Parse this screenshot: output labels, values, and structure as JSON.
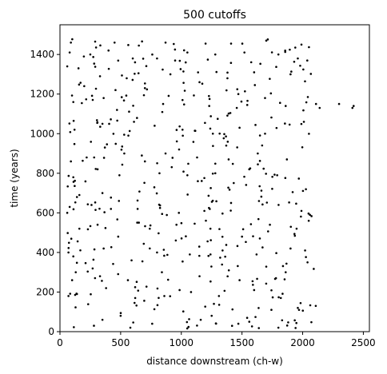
{
  "chart_data": {
    "type": "scatter",
    "title": "500 cutoffs",
    "xlabel": "distance downstream (ch-w)",
    "ylabel": "time (years)",
    "xlim": [
      0,
      2550
    ],
    "ylim": [
      0,
      1550
    ],
    "xticks": [
      0,
      500,
      1000,
      1500,
      2000,
      2500
    ],
    "yticks": [
      0,
      200,
      400,
      600,
      800,
      1000,
      1200,
      1400
    ],
    "grid": false,
    "point_color": "#000000",
    "point_count": 500,
    "points_sample": [
      [
        90,
        1460
      ],
      [
        290,
        1465
      ],
      [
        450,
        1460
      ],
      [
        650,
        1445
      ],
      [
        870,
        1460
      ],
      [
        1200,
        1455
      ],
      [
        1410,
        1455
      ],
      [
        1700,
        1470
      ],
      [
        1990,
        1450
      ],
      [
        60,
        1340
      ],
      [
        80,
        1410
      ],
      [
        250,
        1400
      ],
      [
        400,
        1420
      ],
      [
        600,
        1380
      ],
      [
        800,
        1380
      ],
      [
        1050,
        1410
      ],
      [
        1280,
        1400
      ],
      [
        1520,
        1410
      ],
      [
        1800,
        1400
      ],
      [
        1960,
        1380
      ],
      [
        200,
        1240
      ],
      [
        330,
        1290
      ],
      [
        550,
        1280
      ],
      [
        700,
        1230
      ],
      [
        910,
        1300
      ],
      [
        1150,
        1260
      ],
      [
        1380,
        1280
      ],
      [
        1600,
        1310
      ],
      [
        1900,
        1300
      ],
      [
        110,
        1160
      ],
      [
        360,
        1180
      ],
      [
        470,
        1120
      ],
      [
        850,
        1150
      ],
      [
        1010,
        1170
      ],
      [
        1230,
        1140
      ],
      [
        1470,
        1200
      ],
      [
        1690,
        1180
      ],
      [
        1860,
        1140
      ],
      [
        2010,
        1060
      ],
      [
        2110,
        1150
      ],
      [
        2140,
        1130
      ],
      [
        2300,
        1150
      ],
      [
        2420,
        1140
      ],
      [
        2410,
        1130
      ],
      [
        120,
        1020
      ],
      [
        350,
        1050
      ],
      [
        610,
        1060
      ],
      [
        780,
        1040
      ],
      [
        1010,
        1020
      ],
      [
        1260,
        1000
      ],
      [
        1480,
        1030
      ],
      [
        1690,
        1000
      ],
      [
        90,
        860
      ],
      [
        220,
        880
      ],
      [
        370,
        930
      ],
      [
        530,
        900
      ],
      [
        700,
        860
      ],
      [
        870,
        900
      ],
      [
        1130,
        880
      ],
      [
        1390,
        870
      ],
      [
        1630,
        900
      ],
      [
        1870,
        870
      ],
      [
        110,
        780
      ],
      [
        310,
        820
      ],
      [
        490,
        790
      ],
      [
        820,
        800
      ],
      [
        1050,
        790
      ],
      [
        1280,
        800
      ],
      [
        1560,
        820
      ],
      [
        1790,
        790
      ],
      [
        60,
        600
      ],
      [
        80,
        630
      ],
      [
        140,
        680
      ],
      [
        260,
        640
      ],
      [
        420,
        620
      ],
      [
        640,
        620
      ],
      [
        980,
        600
      ],
      [
        1190,
        610
      ],
      [
        1410,
        650
      ],
      [
        1640,
        660
      ],
      [
        1990,
        610
      ],
      [
        2050,
        560
      ],
      [
        2060,
        590
      ],
      [
        160,
        520
      ],
      [
        310,
        540
      ],
      [
        480,
        480
      ],
      [
        740,
        520
      ],
      [
        960,
        540
      ],
      [
        1240,
        520
      ],
      [
        1500,
        480
      ],
      [
        1730,
        540
      ],
      [
        1950,
        520
      ],
      [
        70,
        400
      ],
      [
        110,
        380
      ],
      [
        360,
        420
      ],
      [
        590,
        360
      ],
      [
        800,
        400
      ],
      [
        1070,
        390
      ],
      [
        1340,
        410
      ],
      [
        1620,
        390
      ],
      [
        1900,
        420
      ],
      [
        2020,
        410
      ],
      [
        2040,
        350
      ],
      [
        100,
        260
      ],
      [
        130,
        300
      ],
      [
        330,
        280
      ],
      [
        560,
        260
      ],
      [
        840,
        300
      ],
      [
        1150,
        280
      ],
      [
        1480,
        260
      ],
      [
        1780,
        270
      ],
      [
        1860,
        300
      ],
      [
        70,
        180
      ],
      [
        140,
        190
      ],
      [
        380,
        220
      ],
      [
        620,
        170
      ],
      [
        860,
        180
      ],
      [
        1080,
        200
      ],
      [
        1310,
        180
      ],
      [
        1600,
        210
      ],
      [
        1820,
        170
      ],
      [
        1960,
        120
      ],
      [
        1970,
        110
      ],
      [
        280,
        30
      ],
      [
        350,
        60
      ],
      [
        500,
        80
      ],
      [
        580,
        20
      ],
      [
        760,
        40
      ],
      [
        1160,
        60
      ],
      [
        1250,
        80
      ],
      [
        1470,
        40
      ],
      [
        1560,
        50
      ],
      [
        1800,
        20
      ]
    ]
  }
}
